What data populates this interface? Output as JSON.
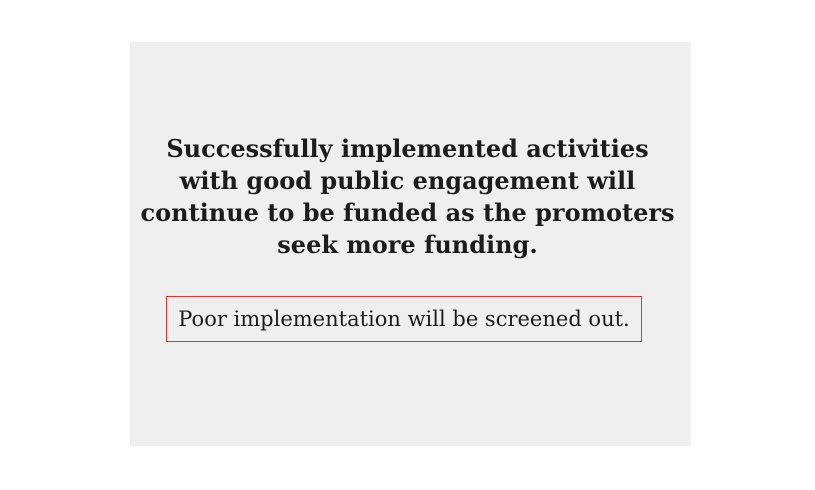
{
  "slide": {
    "headline_lines": [
      "Successfully implemented activities",
      "with good public engagement will",
      "continue to be funded as the promoters",
      "seek more funding."
    ],
    "callout_text": "Poor implementation will be screened out.",
    "colors": {
      "card_background": "#efefef",
      "text": "#1c1c1c",
      "callout_border": "#d63b3b"
    }
  }
}
